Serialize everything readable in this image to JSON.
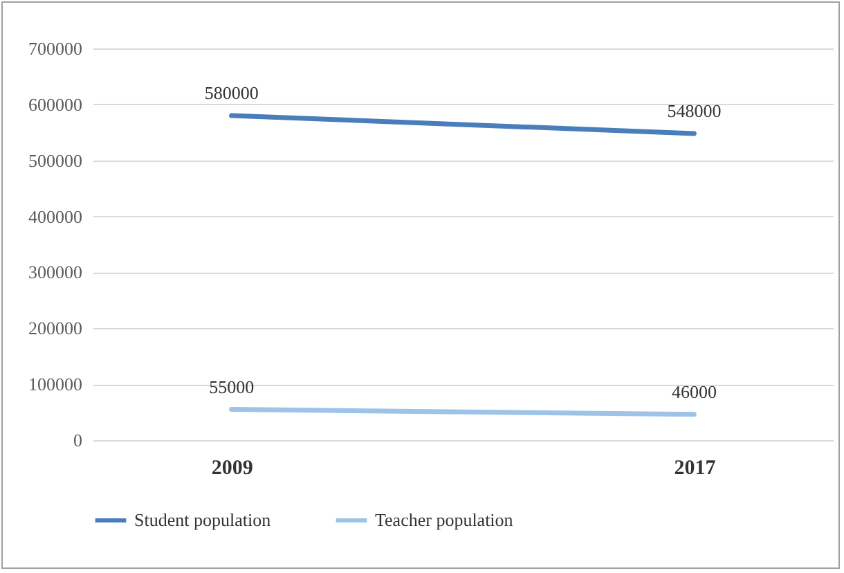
{
  "chart_data": {
    "type": "line",
    "categories": [
      "2009",
      "2017"
    ],
    "series": [
      {
        "name": "Student population",
        "color": "#4a7ebb",
        "values": [
          580000,
          548000
        ]
      },
      {
        "name": "Teacher population",
        "color": "#9dc3e6",
        "values": [
          55000,
          46000
        ]
      }
    ],
    "ylim": [
      0,
      700000
    ],
    "yticks": [
      0,
      100000,
      200000,
      300000,
      400000,
      500000,
      600000,
      700000
    ],
    "grid": "y",
    "legend": "bottom",
    "data_labels": true,
    "marker": "none",
    "line_style": "solid"
  }
}
